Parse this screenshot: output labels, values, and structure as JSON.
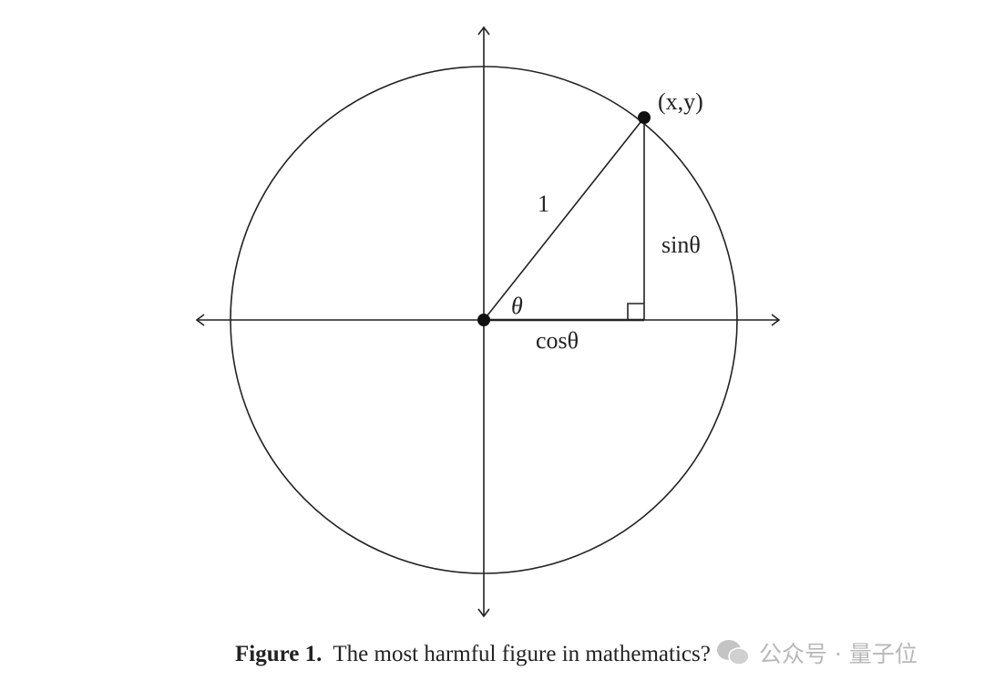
{
  "figure": {
    "labels": {
      "point": "(x,y)",
      "hypotenuse": "1",
      "opposite": "sinθ",
      "adjacent": "cosθ",
      "angle": "θ"
    },
    "caption": {
      "number": "Figure 1.",
      "text": "The most harmful figure in mathematics?"
    },
    "watermark": "公众号 · 量子位",
    "stroke_color": "#222222"
  }
}
